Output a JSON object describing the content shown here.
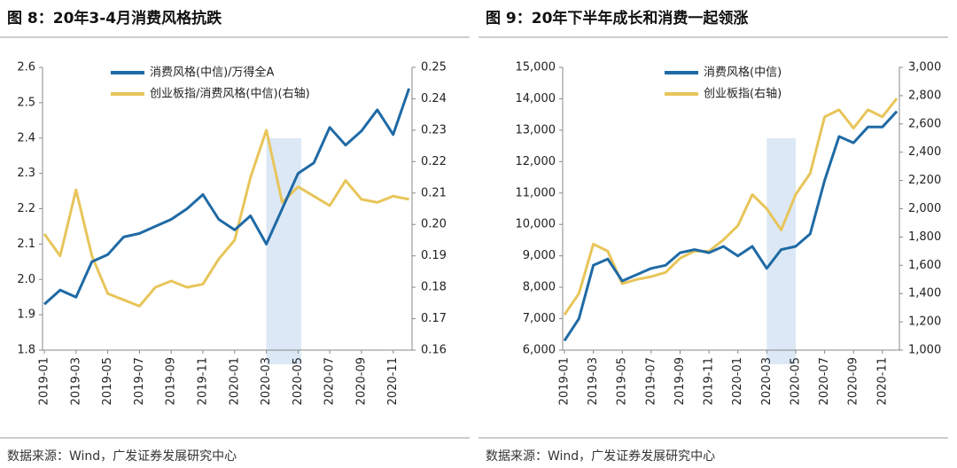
{
  "chart_data": [
    {
      "type": "line",
      "title": "图 8：20年3-4月消费风格抗跌",
      "source": "数据来源：Wind，广发证券发展研究中心",
      "x": [
        "2019-01",
        null,
        "2019-03",
        null,
        "2019-05",
        null,
        "2019-07",
        null,
        "2019-09",
        null,
        "2019-11",
        null,
        "2020-01",
        null,
        "2020-03",
        null,
        "2020-05",
        null,
        "2020-07",
        null,
        "2020-09",
        null,
        "2020-11",
        null
      ],
      "series": [
        {
          "name": "消费风格(中信)/万得全A",
          "color": "#1f6aa5",
          "axis": "y",
          "values": [
            1.93,
            1.97,
            1.95,
            2.05,
            2.07,
            2.12,
            2.13,
            2.15,
            2.17,
            2.2,
            2.24,
            2.17,
            2.14,
            2.18,
            2.1,
            2.2,
            2.3,
            2.33,
            2.43,
            2.38,
            2.42,
            2.48,
            2.41,
            2.54
          ]
        },
        {
          "name": "创业板指/消费风格(中信)(右轴)",
          "color": "#e8c55a",
          "axis": "y2",
          "values": [
            0.197,
            0.19,
            0.211,
            0.19,
            0.178,
            0.176,
            0.174,
            0.18,
            0.182,
            0.18,
            0.181,
            0.189,
            0.195,
            0.215,
            0.23,
            0.207,
            0.212,
            0.209,
            0.206,
            0.214,
            0.208,
            0.207,
            0.209,
            0.208
          ]
        }
      ],
      "ylim": [
        1.8,
        2.6
      ],
      "yticks": [
        1.8,
        1.9,
        {
          "value": 2,
          "label": "2.0"
        },
        2.1,
        2.2,
        2.3,
        2.4,
        2.5,
        2.6
      ],
      "y2lim": [
        0.16,
        0.25
      ],
      "y2ticks": [
        0.16,
        0.17,
        0.18,
        0.19,
        {
          "value": 0.2,
          "label": "0.20"
        },
        0.21,
        0.22,
        0.23,
        0.24,
        0.25
      ],
      "highlight": [
        14,
        16.2
      ],
      "highlight_color": "#dce8f6",
      "legend": "top-left"
    },
    {
      "type": "line",
      "title": "图 9：20年下半年成长和消费一起领涨",
      "source": "数据来源：Wind，广发证券发展研究中心",
      "x": [
        "2019-01",
        null,
        "2019-03",
        null,
        "2019-05",
        null,
        "2019-07",
        null,
        "2019-09",
        null,
        "2019-11",
        null,
        "2020-01",
        null,
        "2020-03",
        null,
        "2020-05",
        null,
        "2020-07",
        null,
        "2020-09",
        null,
        "2020-11",
        null
      ],
      "series": [
        {
          "name": "消费风格(中信)",
          "color": "#1f6aa5",
          "axis": "y",
          "values": [
            6300,
            7000,
            8700,
            8900,
            8200,
            8400,
            8600,
            8700,
            9100,
            9200,
            9100,
            9300,
            9000,
            9300,
            8600,
            9200,
            9300,
            9700,
            11400,
            12800,
            12600,
            13100,
            13100,
            13600
          ]
        },
        {
          "name": "创业板指(右轴)",
          "color": "#e8c55a",
          "axis": "y2",
          "values": [
            1250,
            1400,
            1750,
            1700,
            1470,
            1500,
            1520,
            1550,
            1650,
            1700,
            1700,
            1780,
            1880,
            2100,
            2000,
            1850,
            2100,
            2250,
            2650,
            2700,
            2570,
            2700,
            2650,
            2780
          ]
        }
      ],
      "ylim": [
        6000,
        15000
      ],
      "yticks": [
        {
          "value": 6000,
          "label": "6,000"
        },
        {
          "value": 7000,
          "label": "7,000"
        },
        {
          "value": 8000,
          "label": "8,000"
        },
        {
          "value": 9000,
          "label": "9,000"
        },
        {
          "value": 10000,
          "label": "10,000"
        },
        {
          "value": 11000,
          "label": "11,000"
        },
        {
          "value": 12000,
          "label": "12,000"
        },
        {
          "value": 13000,
          "label": "13,000"
        },
        {
          "value": 14000,
          "label": "14,000"
        },
        {
          "value": 15000,
          "label": "15,000"
        }
      ],
      "y2lim": [
        1000,
        3000
      ],
      "y2ticks": [
        {
          "value": 1000,
          "label": "1,000"
        },
        {
          "value": 1200,
          "label": "1,200"
        },
        {
          "value": 1400,
          "label": "1,400"
        },
        {
          "value": 1600,
          "label": "1,600"
        },
        {
          "value": 1800,
          "label": "1,800"
        },
        {
          "value": 2000,
          "label": "2,000"
        },
        {
          "value": 2200,
          "label": "2,200"
        },
        {
          "value": 2400,
          "label": "2,400"
        },
        {
          "value": 2600,
          "label": "2,600"
        },
        {
          "value": 2800,
          "label": "2,800"
        },
        {
          "value": 3000,
          "label": "3,000"
        }
      ],
      "highlight": [
        14,
        16
      ],
      "highlight_color": "#dce8f6",
      "legend": "top-center"
    }
  ]
}
